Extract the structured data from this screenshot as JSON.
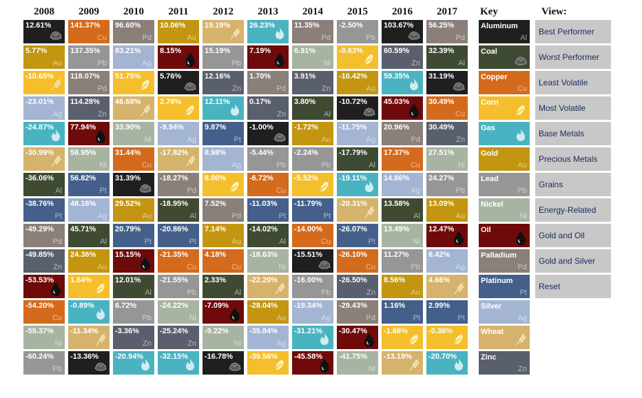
{
  "colors": {
    "Aluminum": "#1f1f1f",
    "Coal": "#3f4a33",
    "Copper": "#d46a1c",
    "Corn": "#f5be2c",
    "Gas": "#4ab3c1",
    "Gold": "#c39511",
    "Lead": "#969696",
    "Nickel": "#a8b4a2",
    "Oil": "#6e0a0a",
    "Palladium": "#8a7f79",
    "Platinum": "#44608a",
    "Silver": "#a3b5d3",
    "Wheat": "#d6b36c",
    "Zinc": "#5a5f6d"
  },
  "icons": {
    "Aluminum": "coal-lump-icon",
    "Coal": "coal-lump-icon",
    "Corn": "corn-cob-icon",
    "Gas": "gas-flame-icon",
    "Oil": "oil-drop-icon",
    "Wheat": "wheat-icon"
  },
  "chart_data": {
    "type": "table",
    "years": [
      "2008",
      "2009",
      "2010",
      "2011",
      "2012",
      "2013",
      "2014",
      "2015",
      "2016",
      "2017"
    ],
    "columns": [
      [
        {
          "value": "12.61%",
          "sym": "",
          "commodity": "Coal",
          "override_color": "#1f1f1f"
        },
        {
          "value": "5.77%",
          "sym": "Au",
          "commodity": "Gold"
        },
        {
          "value": "-10.65%",
          "sym": "",
          "commodity": "Wheat",
          "override_color": "#f5be2c"
        },
        {
          "value": "-23.01%",
          "sym": "Ag",
          "commodity": "Silver"
        },
        {
          "value": "-24.87%",
          "sym": "",
          "commodity": "Gas"
        },
        {
          "value": "-30.99%",
          "sym": "",
          "commodity": "Wheat"
        },
        {
          "value": "-36.06%",
          "sym": "Al",
          "commodity": "Coal"
        },
        {
          "value": "-38.76%",
          "sym": "Pt",
          "commodity": "Platinum"
        },
        {
          "value": "-49.29%",
          "sym": "Pd",
          "commodity": "Palladium"
        },
        {
          "value": "-49.85%",
          "sym": "Zn",
          "commodity": "Zinc"
        },
        {
          "value": "-53.53%",
          "sym": "",
          "commodity": "Oil"
        },
        {
          "value": "-54.20%",
          "sym": "Cu",
          "commodity": "Copper"
        },
        {
          "value": "-55.37%",
          "sym": "Ni",
          "commodity": "Nickel"
        },
        {
          "value": "-60.24%",
          "sym": "Pb",
          "commodity": "Lead"
        }
      ],
      [
        {
          "value": "141.37%",
          "sym": "Cu",
          "commodity": "Copper"
        },
        {
          "value": "137.35%",
          "sym": "Pb",
          "commodity": "Lead"
        },
        {
          "value": "118.07%",
          "sym": "Pd",
          "commodity": "Palladium"
        },
        {
          "value": "114.28%",
          "sym": "Zn",
          "commodity": "Zinc"
        },
        {
          "value": "77.94%",
          "sym": "",
          "commodity": "Oil"
        },
        {
          "value": "58.95%",
          "sym": "Ni",
          "commodity": "Nickel"
        },
        {
          "value": "56.82%",
          "sym": "Pt",
          "commodity": "Platinum"
        },
        {
          "value": "48.16%",
          "sym": "Ag",
          "commodity": "Silver"
        },
        {
          "value": "45.71%",
          "sym": "Al",
          "commodity": "Coal"
        },
        {
          "value": "24.36%",
          "sym": "Au",
          "commodity": "Gold"
        },
        {
          "value": "1.84%",
          "sym": "",
          "commodity": "Corn"
        },
        {
          "value": "-0.89%",
          "sym": "",
          "commodity": "Gas"
        },
        {
          "value": "-11.34%",
          "sym": "",
          "commodity": "Wheat"
        },
        {
          "value": "-13.36%",
          "sym": "",
          "commodity": "Aluminum"
        }
      ],
      [
        {
          "value": "96.60%",
          "sym": "Pd",
          "commodity": "Palladium"
        },
        {
          "value": "83.21%",
          "sym": "Ag",
          "commodity": "Silver"
        },
        {
          "value": "51.75%",
          "sym": "",
          "commodity": "Corn"
        },
        {
          "value": "46.68%",
          "sym": "",
          "commodity": "Wheat"
        },
        {
          "value": "33.90%",
          "sym": "Ni",
          "commodity": "Nickel"
        },
        {
          "value": "31.44%",
          "sym": "Cu",
          "commodity": "Copper"
        },
        {
          "value": "31.39%",
          "sym": "",
          "commodity": "Aluminum"
        },
        {
          "value": "29.52%",
          "sym": "Au",
          "commodity": "Gold"
        },
        {
          "value": "20.79%",
          "sym": "Pt",
          "commodity": "Platinum"
        },
        {
          "value": "15.15%",
          "sym": "",
          "commodity": "Oil"
        },
        {
          "value": "12.01%",
          "sym": "Al",
          "commodity": "Coal"
        },
        {
          "value": "6.72%",
          "sym": "Pb",
          "commodity": "Lead"
        },
        {
          "value": "-3.36%",
          "sym": "Zn",
          "commodity": "Zinc"
        },
        {
          "value": "-20.94%",
          "sym": "",
          "commodity": "Gas"
        }
      ],
      [
        {
          "value": "10.06%",
          "sym": "Au",
          "commodity": "Gold"
        },
        {
          "value": "8.15%",
          "sym": "",
          "commodity": "Oil"
        },
        {
          "value": "5.76%",
          "sym": "",
          "commodity": "Aluminum"
        },
        {
          "value": "2.78%",
          "sym": "",
          "commodity": "Corn"
        },
        {
          "value": "-9.94%",
          "sym": "Ag",
          "commodity": "Silver"
        },
        {
          "value": "-17.82%",
          "sym": "",
          "commodity": "Wheat"
        },
        {
          "value": "-18.27%",
          "sym": "Pd",
          "commodity": "Palladium"
        },
        {
          "value": "-18.95%",
          "sym": "Al",
          "commodity": "Coal"
        },
        {
          "value": "-20.86%",
          "sym": "Pt",
          "commodity": "Platinum"
        },
        {
          "value": "-21.35%",
          "sym": "Cu",
          "commodity": "Copper"
        },
        {
          "value": "-21.55%",
          "sym": "Pb",
          "commodity": "Lead"
        },
        {
          "value": "-24.22%",
          "sym": "Ni",
          "commodity": "Nickel"
        },
        {
          "value": "-25.24%",
          "sym": "Zn",
          "commodity": "Zinc"
        },
        {
          "value": "-32.15%",
          "sym": "",
          "commodity": "Gas"
        }
      ],
      [
        {
          "value": "19.19%",
          "sym": "",
          "commodity": "Wheat"
        },
        {
          "value": "15.19%",
          "sym": "Pb",
          "commodity": "Lead"
        },
        {
          "value": "12.16%",
          "sym": "Zn",
          "commodity": "Zinc"
        },
        {
          "value": "12.11%",
          "sym": "",
          "commodity": "Gas"
        },
        {
          "value": "9.87%",
          "sym": "Pt",
          "commodity": "Platinum"
        },
        {
          "value": "8.98%",
          "sym": "Ag",
          "commodity": "Silver"
        },
        {
          "value": "8.00%",
          "sym": "",
          "commodity": "Corn"
        },
        {
          "value": "7.52%",
          "sym": "Pd",
          "commodity": "Palladium"
        },
        {
          "value": "7.14%",
          "sym": "Au",
          "commodity": "Gold"
        },
        {
          "value": "4.18%",
          "sym": "Cu",
          "commodity": "Copper"
        },
        {
          "value": "2.33%",
          "sym": "Al",
          "commodity": "Coal"
        },
        {
          "value": "-7.09%",
          "sym": "",
          "commodity": "Oil"
        },
        {
          "value": "-9.22%",
          "sym": "Ni",
          "commodity": "Nickel"
        },
        {
          "value": "-16.78%",
          "sym": "",
          "commodity": "Aluminum"
        }
      ],
      [
        {
          "value": "26.23%",
          "sym": "",
          "commodity": "Gas"
        },
        {
          "value": "7.19%",
          "sym": "",
          "commodity": "Oil"
        },
        {
          "value": "1.70%",
          "sym": "Pd",
          "commodity": "Palladium"
        },
        {
          "value": "0.17%",
          "sym": "Zn",
          "commodity": "Zinc"
        },
        {
          "value": "-1.00%",
          "sym": "",
          "commodity": "Aluminum"
        },
        {
          "value": "-5.44%",
          "sym": "Pb",
          "commodity": "Lead"
        },
        {
          "value": "-6.72%",
          "sym": "Cu",
          "commodity": "Copper"
        },
        {
          "value": "-11.03%",
          "sym": "Pt",
          "commodity": "Platinum"
        },
        {
          "value": "-14.02%",
          "sym": "Al",
          "commodity": "Coal"
        },
        {
          "value": "-18.63%",
          "sym": "Ni",
          "commodity": "Nickel"
        },
        {
          "value": "-22.20%",
          "sym": "",
          "commodity": "Wheat"
        },
        {
          "value": "-28.04%",
          "sym": "Au",
          "commodity": "Gold"
        },
        {
          "value": "-35.84%",
          "sym": "Ag",
          "commodity": "Silver"
        },
        {
          "value": "-39.56%",
          "sym": "",
          "commodity": "Corn"
        }
      ],
      [
        {
          "value": "11.35%",
          "sym": "Pd",
          "commodity": "Palladium"
        },
        {
          "value": "6.91%",
          "sym": "Ni",
          "commodity": "Nickel"
        },
        {
          "value": "3.91%",
          "sym": "Zn",
          "commodity": "Zinc"
        },
        {
          "value": "3.80%",
          "sym": "Al",
          "commodity": "Coal"
        },
        {
          "value": "-1.72%",
          "sym": "Au",
          "commodity": "Gold"
        },
        {
          "value": "-2.24%",
          "sym": "Pb",
          "commodity": "Lead"
        },
        {
          "value": "-5.52%",
          "sym": "",
          "commodity": "Corn"
        },
        {
          "value": "-11.79%",
          "sym": "Pt",
          "commodity": "Platinum"
        },
        {
          "value": "-14.00%",
          "sym": "Cu",
          "commodity": "Copper"
        },
        {
          "value": "-15.51%",
          "sym": "",
          "commodity": "Aluminum"
        },
        {
          "value": "-16.00%",
          "sym": "Pb",
          "commodity": "Lead"
        },
        {
          "value": "-19.34%",
          "sym": "Ag",
          "commodity": "Silver"
        },
        {
          "value": "-31.21%",
          "sym": "",
          "commodity": "Gas"
        },
        {
          "value": "-45.58%",
          "sym": "",
          "commodity": "Oil"
        }
      ],
      [
        {
          "value": "-2.50%",
          "sym": "Pb",
          "commodity": "Lead"
        },
        {
          "value": "-9.63%",
          "sym": "",
          "commodity": "Corn"
        },
        {
          "value": "-10.42%",
          "sym": "Au",
          "commodity": "Gold"
        },
        {
          "value": "-10.72%",
          "sym": "",
          "commodity": "Aluminum"
        },
        {
          "value": "-11.75%",
          "sym": "Ag",
          "commodity": "Silver"
        },
        {
          "value": "-17.79%",
          "sym": "Al",
          "commodity": "Coal"
        },
        {
          "value": "-19.11%",
          "sym": "",
          "commodity": "Gas"
        },
        {
          "value": "-20.31%",
          "sym": "",
          "commodity": "Wheat"
        },
        {
          "value": "-26.07%",
          "sym": "Pt",
          "commodity": "Platinum"
        },
        {
          "value": "-26.10%",
          "sym": "Cu",
          "commodity": "Copper"
        },
        {
          "value": "-26.50%",
          "sym": "Zn",
          "commodity": "Zinc"
        },
        {
          "value": "-29.43%",
          "sym": "Pd",
          "commodity": "Palladium"
        },
        {
          "value": "-30.47%",
          "sym": "",
          "commodity": "Oil"
        },
        {
          "value": "-41.75%",
          "sym": "Ni",
          "commodity": "Nickel"
        }
      ],
      [
        {
          "value": "103.67%",
          "sym": "",
          "commodity": "Coal",
          "override_color": "#1f1f1f"
        },
        {
          "value": "60.59%",
          "sym": "Zn",
          "commodity": "Zinc"
        },
        {
          "value": "59.35%",
          "sym": "",
          "commodity": "Gas"
        },
        {
          "value": "45.03%",
          "sym": "",
          "commodity": "Oil"
        },
        {
          "value": "20.96%",
          "sym": "Pd",
          "commodity": "Palladium"
        },
        {
          "value": "17.37%",
          "sym": "Cu",
          "commodity": "Copper"
        },
        {
          "value": "14.86%",
          "sym": "Ag",
          "commodity": "Silver"
        },
        {
          "value": "13.58%",
          "sym": "Al",
          "commodity": "Coal"
        },
        {
          "value": "13.49%",
          "sym": "Ni",
          "commodity": "Nickel"
        },
        {
          "value": "11.27%",
          "sym": "Pb",
          "commodity": "Lead"
        },
        {
          "value": "8.56%",
          "sym": "Au",
          "commodity": "Gold"
        },
        {
          "value": "1.16%",
          "sym": "Pt",
          "commodity": "Platinum"
        },
        {
          "value": "-1.88%",
          "sym": "",
          "commodity": "Corn"
        },
        {
          "value": "-13.19%",
          "sym": "",
          "commodity": "Wheat"
        }
      ],
      [
        {
          "value": "56.25%",
          "sym": "Pd",
          "commodity": "Palladium"
        },
        {
          "value": "32.39%",
          "sym": "Al",
          "commodity": "Coal"
        },
        {
          "value": "31.19%",
          "sym": "",
          "commodity": "Aluminum"
        },
        {
          "value": "30.49%",
          "sym": "Cu",
          "commodity": "Copper"
        },
        {
          "value": "30.49%",
          "sym": "Zn",
          "commodity": "Zinc"
        },
        {
          "value": "27.51%",
          "sym": "Ni",
          "commodity": "Nickel"
        },
        {
          "value": "24.27%",
          "sym": "Pb",
          "commodity": "Lead"
        },
        {
          "value": "13.09%",
          "sym": "Au",
          "commodity": "Gold"
        },
        {
          "value": "12.47%",
          "sym": "",
          "commodity": "Oil"
        },
        {
          "value": "6.42%",
          "sym": "Ag",
          "commodity": "Silver"
        },
        {
          "value": "4.66%",
          "sym": "",
          "commodity": "Wheat"
        },
        {
          "value": "2.99%",
          "sym": "Pt",
          "commodity": "Platinum"
        },
        {
          "value": "-0.36%",
          "sym": "",
          "commodity": "Corn"
        },
        {
          "value": "-20.70%",
          "sym": "",
          "commodity": "Gas"
        }
      ]
    ]
  },
  "key": {
    "title": "Key",
    "items": [
      {
        "name": "Aluminum",
        "sym": "Al",
        "color": "#1f1f1f"
      },
      {
        "name": "Coal",
        "sym": "",
        "color": "#3f4a33",
        "icon": "coal-lump-icon"
      },
      {
        "name": "Copper",
        "sym": "Cu",
        "color": "#d46a1c"
      },
      {
        "name": "Corn",
        "sym": "",
        "color": "#f5be2c",
        "icon": "corn-cob-icon"
      },
      {
        "name": "Gas",
        "sym": "",
        "color": "#4ab3c1",
        "icon": "gas-flame-icon"
      },
      {
        "name": "Gold",
        "sym": "Au",
        "color": "#c39511"
      },
      {
        "name": "Lead",
        "sym": "Pb",
        "color": "#969696"
      },
      {
        "name": "Nickel",
        "sym": "Ni",
        "color": "#a8b4a2"
      },
      {
        "name": "Oil",
        "sym": "",
        "color": "#6e0a0a",
        "icon": "oil-drop-icon"
      },
      {
        "name": "Palladium",
        "sym": "Pd",
        "color": "#8a7f79"
      },
      {
        "name": "Platinum",
        "sym": "Pt",
        "color": "#44608a"
      },
      {
        "name": "Silver",
        "sym": "Ag",
        "color": "#a3b5d3"
      },
      {
        "name": "Wheat",
        "sym": "",
        "color": "#d6b36c",
        "icon": "wheat-icon"
      },
      {
        "name": "Zinc",
        "sym": "Zn",
        "color": "#5a5f6d"
      }
    ]
  },
  "view": {
    "title": "View:",
    "buttons": [
      "Best Performer",
      "Worst Performer",
      "Least Volatile",
      "Most Volatile",
      "Base Metals",
      "Precious Metals",
      "Grains",
      "Energy-Related",
      "Gold and Oil",
      "Gold and Silver",
      "Reset"
    ]
  }
}
